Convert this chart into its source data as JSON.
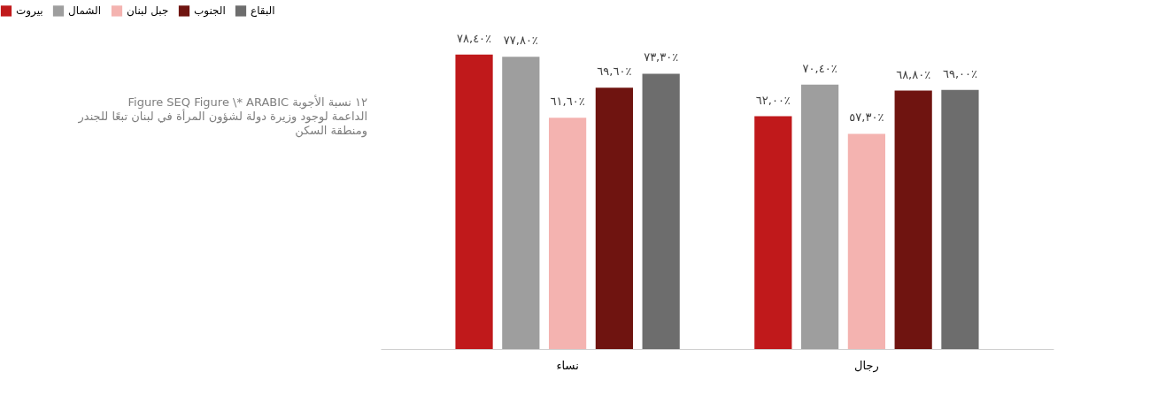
{
  "chart_data": {
    "type": "bar",
    "categories": [
      "نساء",
      "رجال"
    ],
    "series": [
      {
        "name": "بيروت",
        "color": "#c0191b",
        "values": [
          78.4,
          62.0
        ],
        "value_labels": [
          "٧٨,٤٠٪",
          "٦٢,٠٠٪"
        ]
      },
      {
        "name": "الشمال",
        "color": "#9e9e9e",
        "values": [
          77.8,
          70.4
        ],
        "value_labels": [
          "٧٧,٨٠٪",
          "٧٠,٤٠٪"
        ]
      },
      {
        "name": "جبل لبنان",
        "color": "#f4b3b0",
        "values": [
          61.6,
          57.3
        ],
        "value_labels": [
          "٦١,٦٠٪",
          "٥٧,٣٠٪"
        ]
      },
      {
        "name": "الجنوب",
        "color": "#6f1410",
        "values": [
          69.6,
          68.8
        ],
        "value_labels": [
          "٦٩,٦٠٪",
          "٦٨,٨٠٪"
        ]
      },
      {
        "name": "البقاع",
        "color": "#6d6d6d",
        "values": [
          73.3,
          69.0
        ],
        "value_labels": [
          "٧٣,٣٠٪",
          "٦٩,٠٠٪"
        ]
      }
    ],
    "legend": "top",
    "grid": false,
    "annotations": [
      "Figure SEQ Figure \\* ARABIC ١٢ نسبة الأجوبة",
      "الداعمة لوجود وزيرة دولة لشؤون المرأة في لبنان تبعًا للجندر",
      "ومنطقة السكن"
    ]
  }
}
